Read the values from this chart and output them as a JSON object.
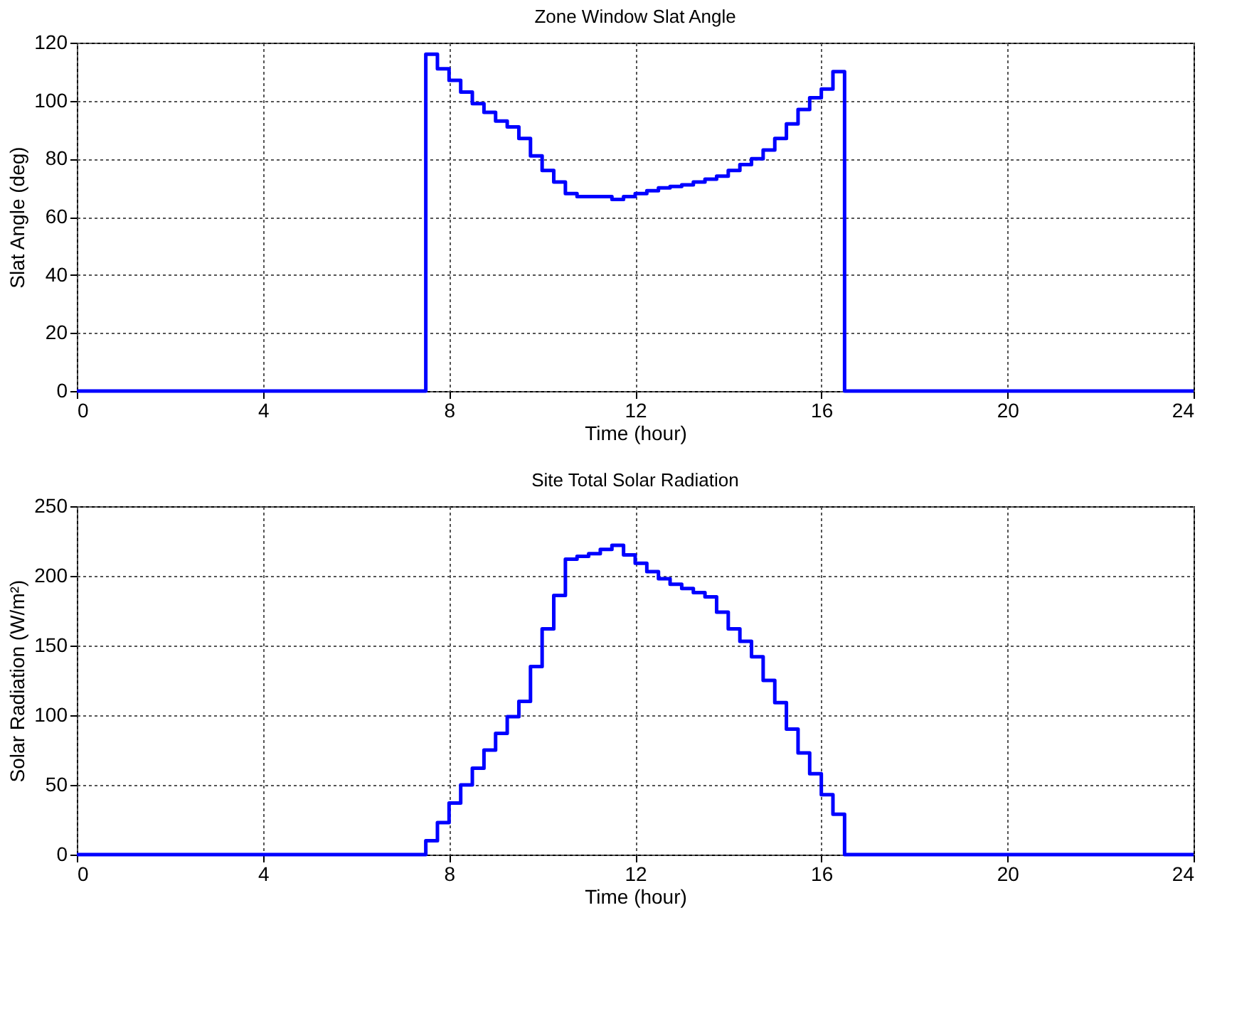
{
  "chart_data": [
    {
      "type": "step",
      "title": "Zone Window Slat Angle",
      "xlabel": "Time (hour)",
      "ylabel": "Slat Angle (deg)",
      "xlim": [
        0,
        24
      ],
      "xticks": [
        0,
        4,
        8,
        12,
        16,
        20,
        24
      ],
      "ylim": [
        0,
        120
      ],
      "yticks": [
        0,
        20,
        40,
        60,
        80,
        100,
        120
      ],
      "grid": true,
      "line_style": "solid",
      "series": [
        {
          "color": "#0000ff",
          "x": [
            0,
            7.5,
            7.75,
            8,
            8.25,
            8.5,
            8.75,
            9,
            9.25,
            9.5,
            9.75,
            10,
            10.25,
            10.5,
            10.75,
            11,
            11.25,
            11.5,
            11.75,
            12,
            12.25,
            12.5,
            12.75,
            13,
            13.25,
            13.5,
            13.75,
            14,
            14.25,
            14.5,
            14.75,
            15,
            15.25,
            15.5,
            15.75,
            16,
            16.25,
            16.5,
            24
          ],
          "values": [
            0,
            116,
            111,
            107,
            103,
            99,
            96,
            93,
            91,
            87,
            81,
            76,
            72,
            68,
            67,
            67,
            67,
            66,
            67,
            68,
            69,
            70,
            70.5,
            71,
            72,
            73,
            74,
            76,
            78,
            80,
            83,
            87,
            92,
            97,
            101,
            104,
            110,
            0,
            0
          ]
        }
      ]
    },
    {
      "type": "step",
      "title": "Site Total Solar Radiation",
      "xlabel": "Time (hour)",
      "ylabel": "Solar Radiation (W/m²)",
      "xlim": [
        0,
        24
      ],
      "xticks": [
        0,
        4,
        8,
        12,
        16,
        20,
        24
      ],
      "ylim": [
        0,
        250
      ],
      "yticks": [
        0,
        50,
        100,
        150,
        200,
        250
      ],
      "grid": true,
      "line_style": "solid",
      "series": [
        {
          "color": "#0000ff",
          "x": [
            0,
            7.5,
            7.75,
            8,
            8.25,
            8.5,
            8.75,
            9,
            9.25,
            9.5,
            9.75,
            10,
            10.25,
            10.5,
            10.75,
            11,
            11.25,
            11.5,
            11.75,
            12,
            12.25,
            12.5,
            12.75,
            13,
            13.25,
            13.5,
            13.75,
            14,
            14.25,
            14.5,
            14.75,
            15,
            15.25,
            15.5,
            15.75,
            16,
            16.25,
            16.5,
            24
          ],
          "values": [
            0,
            10,
            23,
            37,
            50,
            62,
            75,
            87,
            99,
            110,
            135,
            162,
            186,
            212,
            214,
            216,
            219,
            222,
            215,
            209,
            203,
            198,
            194,
            191,
            188,
            185,
            174,
            162,
            153,
            142,
            125,
            109,
            90,
            73,
            58,
            43,
            29,
            0,
            0
          ]
        }
      ]
    }
  ]
}
